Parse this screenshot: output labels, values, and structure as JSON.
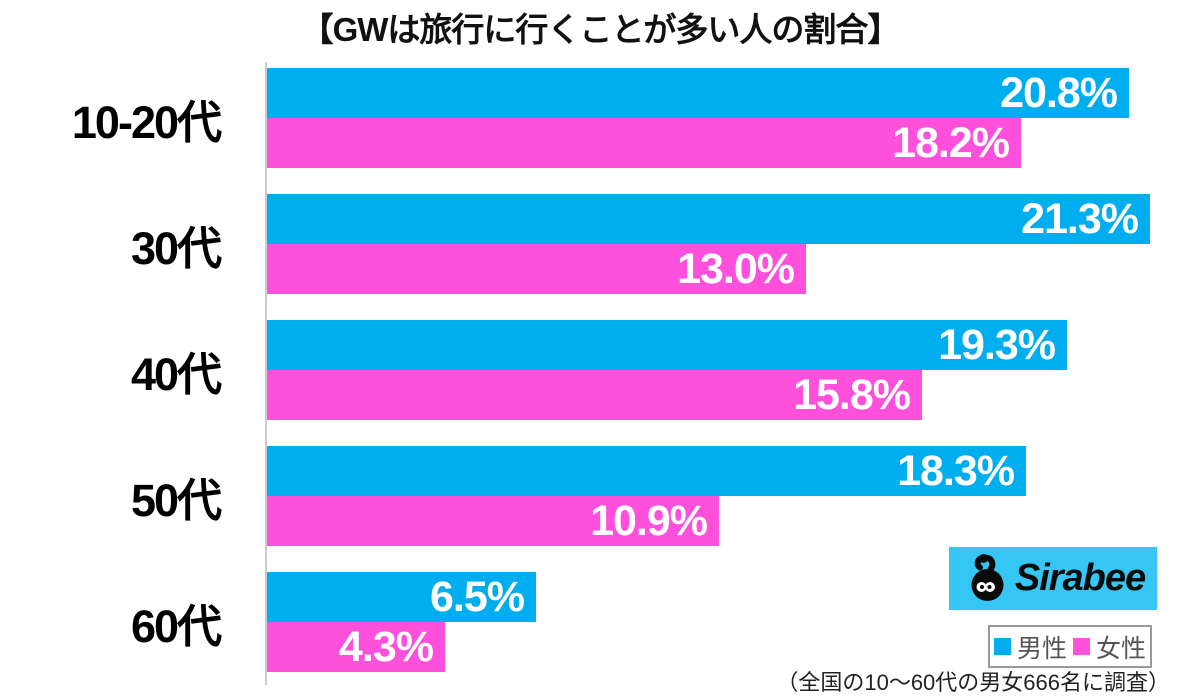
{
  "title": "【GWは旅行に行くことが多い人の割合】",
  "chart_data": {
    "type": "bar",
    "orientation": "horizontal",
    "title": "【GWは旅行に行くことが多い人の割合】",
    "categories": [
      "10-20代",
      "30代",
      "40代",
      "50代",
      "60代"
    ],
    "series": [
      {
        "name": "男性",
        "color": "#00AEEF",
        "values": [
          20.8,
          21.3,
          19.3,
          18.3,
          6.5
        ],
        "value_labels": [
          "20.8%",
          "21.3%",
          "19.3%",
          "18.3%",
          "6.5%"
        ]
      },
      {
        "name": "女性",
        "color": "#FF50DC",
        "values": [
          18.2,
          13.0,
          15.8,
          10.9,
          4.3
        ],
        "value_labels": [
          "18.2%",
          "13.0%",
          "15.8%",
          "10.9%",
          "4.3%"
        ]
      }
    ],
    "xlim": [
      0,
      22
    ],
    "grid": false,
    "value_label_position": "inside-end",
    "legend_position": "bottom-right"
  },
  "legend": {
    "items": [
      {
        "label": "男性",
        "color": "#00AEEF"
      },
      {
        "label": "女性",
        "color": "#FF50DC"
      }
    ]
  },
  "branding": {
    "logo_text": "Sirabee",
    "logo_bg": "#35C6F3"
  },
  "footnote": "（全国の10〜60代の男女666名に調査）"
}
